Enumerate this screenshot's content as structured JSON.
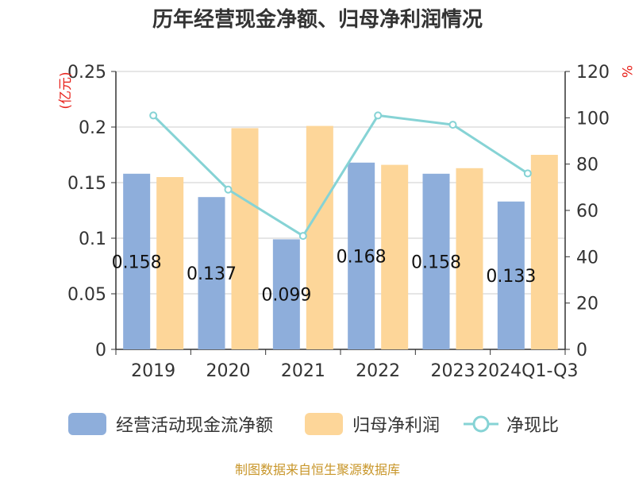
{
  "chart_data": {
    "type": "bar",
    "title": "历年经营现金净额、归母净利润情况",
    "categories": [
      "2019",
      "2020",
      "2021",
      "2022",
      "2023",
      "2024Q1-Q3"
    ],
    "series": [
      {
        "name": "经营活动现金流净额",
        "type": "bar",
        "axis": "left",
        "values": [
          0.158,
          0.137,
          0.099,
          0.168,
          0.158,
          0.133
        ],
        "labels": [
          "0.158",
          "0.137",
          "0.099",
          "0.168",
          "0.158",
          "0.133"
        ],
        "color": "#8eaedb"
      },
      {
        "name": "归母净利润",
        "type": "bar",
        "axis": "left",
        "values": [
          0.155,
          0.199,
          0.201,
          0.166,
          0.163,
          0.175
        ],
        "color": "#fdd699"
      },
      {
        "name": "净现比",
        "type": "line",
        "axis": "right",
        "values": [
          101,
          69,
          49,
          101,
          97,
          76
        ],
        "color": "#86d3d5"
      }
    ],
    "ylabel": "(亿元)",
    "y2label": "%",
    "ylim": [
      0,
      0.25
    ],
    "y2lim": [
      0,
      120
    ],
    "yticks": [
      "0",
      "0.05",
      "0.1",
      "0.15",
      "0.2",
      "0.25"
    ],
    "y2ticks": [
      "0",
      "20",
      "40",
      "60",
      "80",
      "100",
      "120"
    ],
    "grid": true,
    "legend_position": "bottom"
  },
  "footer": "制图数据来自恒生聚源数据库",
  "colors": {
    "axis_label_red": "#e8231d",
    "footer": "#c8962a",
    "text": "#333333",
    "grid": "#cccccc"
  }
}
